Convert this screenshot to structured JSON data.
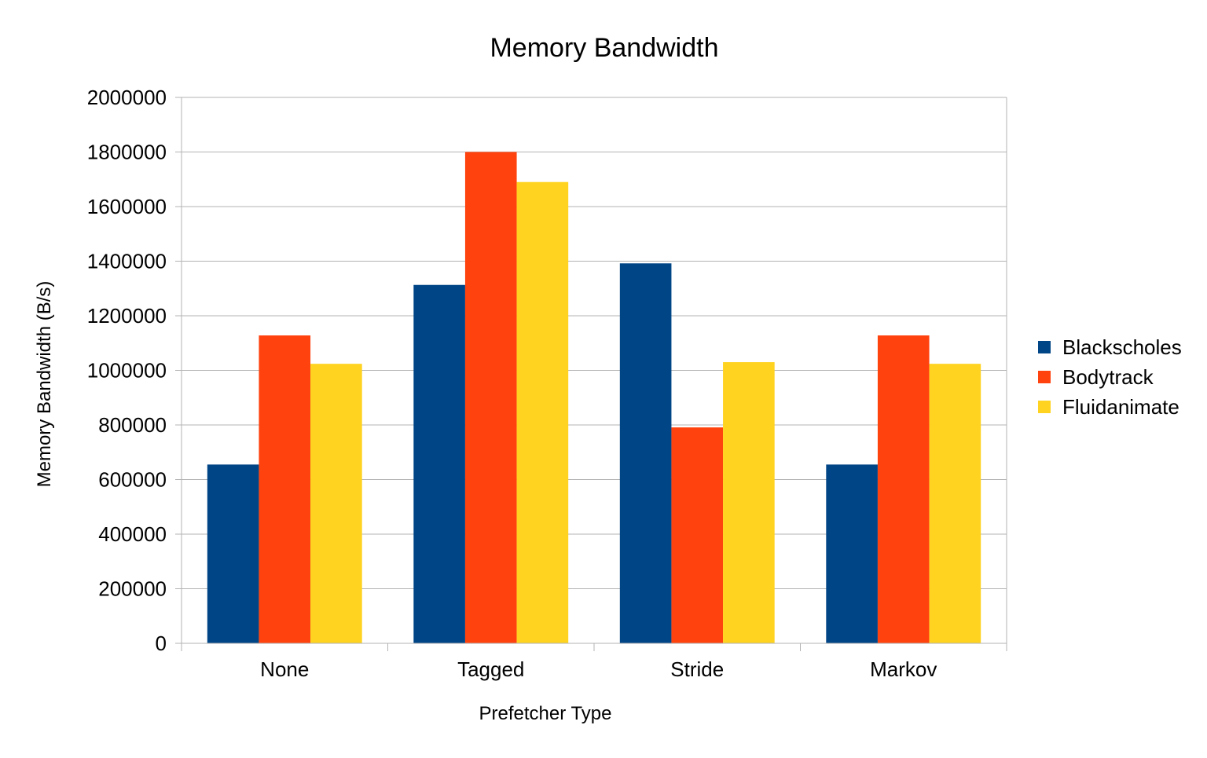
{
  "chart_data": {
    "type": "bar",
    "title": "Memory Bandwidth",
    "xlabel": "Prefetcher Type",
    "ylabel": "Memory Bandwidth (B/s)",
    "categories": [
      "None",
      "Tagged",
      "Stride",
      "Markov"
    ],
    "ylim": [
      0,
      2000000
    ],
    "yticks": [
      0,
      200000,
      400000,
      600000,
      800000,
      1000000,
      1200000,
      1400000,
      1600000,
      1800000,
      2000000
    ],
    "grid": true,
    "legend_position": "right",
    "series": [
      {
        "name": "Blackscholes",
        "color": "#004586",
        "values": [
          655000,
          1313000,
          1392000,
          655000
        ]
      },
      {
        "name": "Bodytrack",
        "color": "#ff420e",
        "values": [
          1128000,
          1800000,
          791000,
          1128000
        ]
      },
      {
        "name": "Fluidanimate",
        "color": "#ffd320",
        "values": [
          1024000,
          1690000,
          1030000,
          1024000
        ]
      }
    ]
  }
}
